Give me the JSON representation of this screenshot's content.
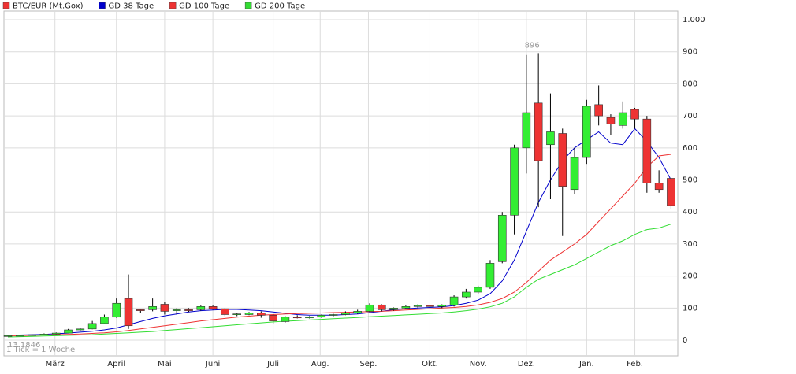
{
  "chart_data": {
    "type": "candlestick",
    "legend": [
      "BTC/EUR (Mt.Gox)",
      "GD 38 Tage",
      "GD 100 Tage",
      "GD 200 Tage"
    ],
    "legend_colors": [
      "#ee3333",
      "#0000cc",
      "#ee3333",
      "#33dd33"
    ],
    "annotations": [
      "896",
      "13.1846",
      "1 Tick = 1 Woche"
    ],
    "categories": [
      null,
      null,
      null,
      null,
      null,
      null,
      null,
      null,
      null,
      null,
      null,
      null,
      null,
      null,
      null,
      null,
      null,
      null,
      null,
      null,
      null,
      null,
      null,
      null,
      null,
      null,
      null,
      null,
      null,
      null,
      null,
      null,
      null,
      null,
      null,
      null,
      null,
      null,
      null,
      null,
      null,
      null,
      null,
      null,
      null,
      null,
      null,
      null,
      null,
      null,
      null,
      null,
      null,
      null,
      null,
      null
    ],
    "open": [
      13,
      14,
      15,
      17,
      19,
      22,
      32,
      35,
      52,
      72,
      130,
      95,
      95,
      112,
      92,
      95,
      95,
      105,
      98,
      80,
      80,
      85,
      78,
      58,
      72,
      70,
      72,
      78,
      80,
      85,
      90,
      110,
      95,
      100,
      105,
      108,
      105,
      110,
      135,
      150,
      165,
      245,
      390,
      600,
      740,
      610,
      645,
      470,
      570,
      735,
      695,
      670,
      720,
      690,
      490,
      505
    ],
    "high": [
      15,
      16,
      18,
      21,
      24,
      35,
      38,
      60,
      80,
      130,
      205,
      97,
      130,
      120,
      100,
      100,
      108,
      108,
      100,
      85,
      88,
      90,
      82,
      75,
      78,
      75,
      80,
      82,
      90,
      95,
      115,
      112,
      102,
      108,
      112,
      110,
      112,
      140,
      160,
      170,
      250,
      400,
      610,
      890,
      896,
      770,
      660,
      600,
      750,
      795,
      705,
      745,
      725,
      700,
      530,
      510
    ],
    "low": [
      12,
      13,
      14,
      16,
      18,
      21,
      30,
      34,
      50,
      70,
      35,
      85,
      90,
      80,
      80,
      88,
      92,
      95,
      75,
      75,
      78,
      70,
      50,
      55,
      68,
      68,
      70,
      75,
      78,
      82,
      88,
      90,
      92,
      98,
      100,
      100,
      100,
      105,
      130,
      145,
      160,
      240,
      330,
      520,
      415,
      440,
      325,
      455,
      550,
      670,
      640,
      660,
      660,
      460,
      460,
      410
    ],
    "close": [
      14,
      15,
      17,
      19,
      22,
      32,
      35,
      52,
      72,
      115,
      45,
      92,
      105,
      90,
      95,
      92,
      105,
      98,
      80,
      82,
      85,
      78,
      60,
      72,
      70,
      72,
      78,
      80,
      85,
      90,
      110,
      95,
      100,
      105,
      108,
      105,
      110,
      135,
      150,
      165,
      240,
      390,
      600,
      710,
      560,
      650,
      480,
      570,
      730,
      700,
      675,
      710,
      690,
      490,
      470,
      420
    ],
    "up_color": "#33ee33",
    "down_color": "#ee3333",
    "series": [
      {
        "name": "GD 38 Tage",
        "color": "#0000cc",
        "values": [
          15,
          16,
          17,
          18,
          20,
          22,
          25,
          28,
          32,
          38,
          48,
          58,
          68,
          76,
          82,
          88,
          92,
          94,
          96,
          96,
          94,
          92,
          88,
          84,
          80,
          78,
          78,
          78,
          80,
          82,
          86,
          90,
          95,
          98,
          100,
          102,
          104,
          108,
          115,
          125,
          145,
          185,
          250,
          340,
          430,
          500,
          560,
          600,
          625,
          650,
          615,
          610,
          660,
          620,
          570,
          500
        ]
      },
      {
        "name": "GD 100 Tage",
        "color": "#ee3333",
        "values": [
          14,
          14,
          15,
          16,
          17,
          18,
          19,
          21,
          23,
          26,
          30,
          35,
          40,
          45,
          50,
          55,
          60,
          64,
          68,
          72,
          75,
          78,
          80,
          82,
          83,
          84,
          85,
          86,
          87,
          88,
          89,
          90,
          92,
          94,
          96,
          98,
          100,
          102,
          105,
          110,
          118,
          130,
          150,
          180,
          215,
          250,
          275,
          300,
          330,
          370,
          410,
          450,
          490,
          540,
          575,
          580
        ]
      },
      {
        "name": "GD 200 Tage",
        "color": "#33dd33",
        "values": [
          10,
          11,
          12,
          13,
          14,
          15,
          16,
          17,
          19,
          21,
          23,
          25,
          27,
          30,
          33,
          36,
          39,
          42,
          45,
          48,
          51,
          54,
          57,
          59,
          61,
          63,
          65,
          67,
          69,
          71,
          73,
          75,
          77,
          79,
          81,
          83,
          85,
          88,
          92,
          97,
          104,
          115,
          135,
          165,
          190,
          205,
          220,
          235,
          255,
          275,
          295,
          310,
          330,
          345,
          350,
          362
        ]
      }
    ],
    "xlim": [
      -0.33,
      55.56
    ],
    "xticks": [
      {
        "value": 3.9,
        "label": "März"
      },
      {
        "value": 9.0,
        "label": "April"
      },
      {
        "value": 13.0,
        "label": "Mai"
      },
      {
        "value": 17.0,
        "label": "Juni"
      },
      {
        "value": 22.0,
        "label": "Juli"
      },
      {
        "value": 25.9,
        "label": "Aug."
      },
      {
        "value": 29.9,
        "label": "Sep."
      },
      {
        "value": 35.0,
        "label": "Okt."
      },
      {
        "value": 39.0,
        "label": "Nov."
      },
      {
        "value": 43.0,
        "label": "Dez."
      },
      {
        "value": 48.0,
        "label": "Jan."
      },
      {
        "value": 52.0,
        "label": "Feb."
      }
    ],
    "ylim": [
      -49,
      1027
    ],
    "yticks": [
      0,
      100,
      200,
      300,
      400,
      500,
      600,
      700,
      800,
      900,
      {
        "value": 1000,
        "label": "1.000"
      }
    ],
    "grid": true
  }
}
